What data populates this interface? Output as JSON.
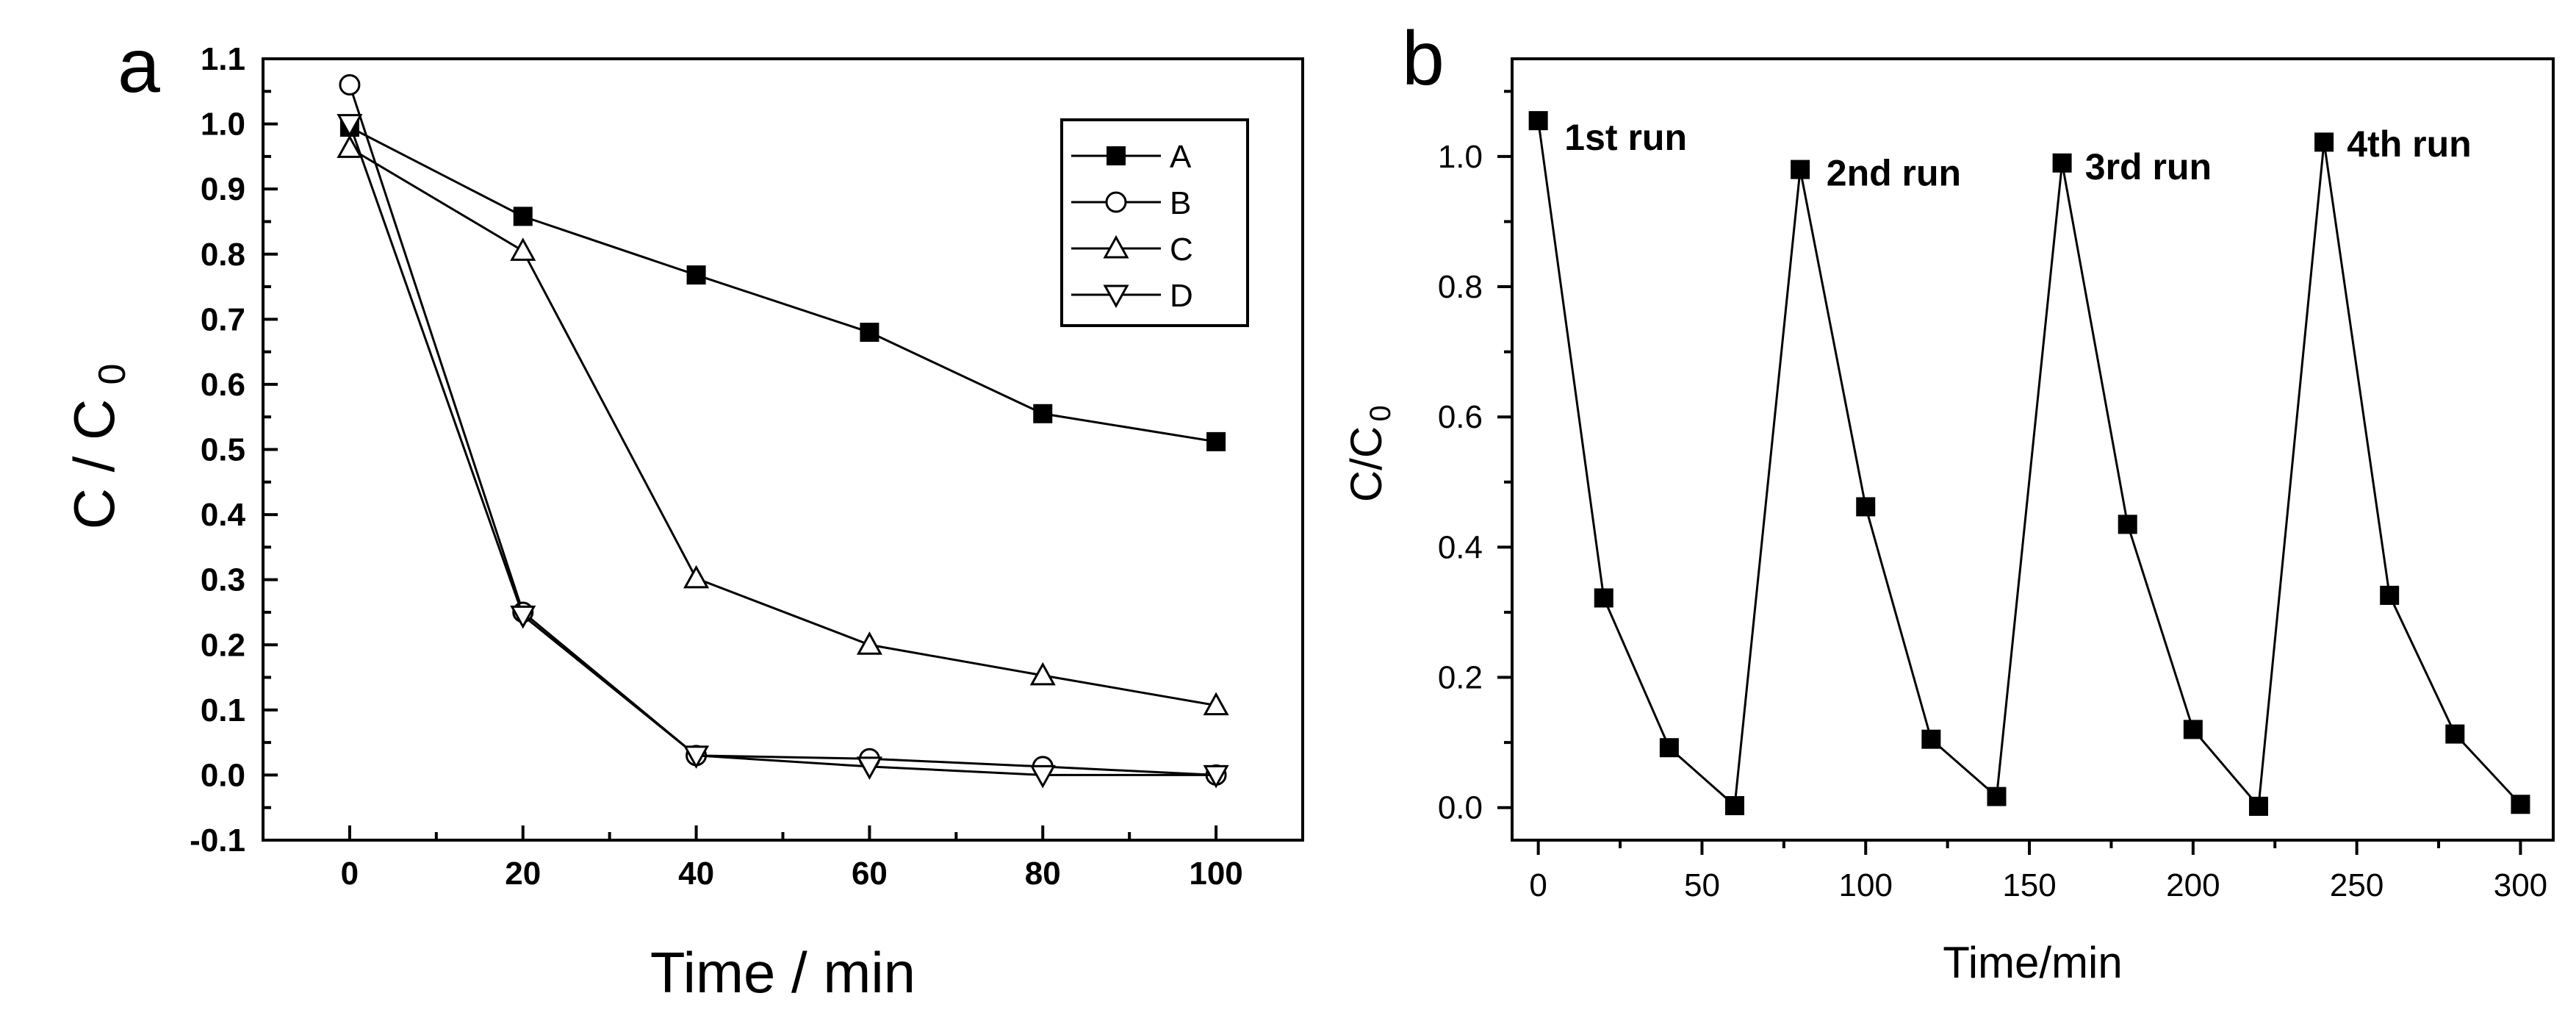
{
  "chart_data": [
    {
      "type": "line",
      "panel_label": "a",
      "xlabel": "Time / min",
      "ylabel_main": "C / C",
      "ylabel_sub": "0",
      "xlim": [
        -10,
        110
      ],
      "ylim": [
        -0.1,
        1.1
      ],
      "x_ticks": [
        0,
        20,
        40,
        60,
        80,
        100
      ],
      "x_tick_labels": [
        "0",
        "20",
        "40",
        "60",
        "80",
        "100"
      ],
      "y_ticks": [
        -0.1,
        0.0,
        0.1,
        0.2,
        0.3,
        0.4,
        0.5,
        0.6,
        0.7,
        0.8,
        0.9,
        1.0,
        1.1
      ],
      "y_tick_labels": [
        "-0.1",
        "0.0",
        "0.1",
        "0.2",
        "0.3",
        "0.4",
        "0.5",
        "0.6",
        "0.7",
        "0.8",
        "0.9",
        "1.0",
        "1.1"
      ],
      "x": [
        0,
        20,
        40,
        60,
        80,
        100
      ],
      "series": [
        {
          "name": "A",
          "marker": "square-filled",
          "values": [
            0.995,
            0.858,
            0.768,
            0.68,
            0.555,
            0.512
          ]
        },
        {
          "name": "B",
          "marker": "circle-open",
          "values": [
            1.06,
            0.25,
            0.03,
            0.025,
            0.013,
            0.0
          ]
        },
        {
          "name": "C",
          "marker": "triangle-up-open",
          "values": [
            0.963,
            0.805,
            0.302,
            0.2,
            0.153,
            0.107
          ]
        },
        {
          "name": "D",
          "marker": "triangle-down-open",
          "values": [
            1.0,
            0.245,
            0.03,
            0.013,
            0.0,
            0.0
          ]
        }
      ],
      "legend_position": "top-right"
    },
    {
      "type": "line",
      "panel_label": "b",
      "xlabel": "Time/min",
      "ylabel_main": "C/C",
      "ylabel_sub": "0",
      "xlim": [
        -8,
        310
      ],
      "ylim": [
        -0.05,
        1.15
      ],
      "x_ticks": [
        0,
        50,
        100,
        150,
        200,
        250,
        300
      ],
      "x_tick_labels": [
        "0",
        "50",
        "100",
        "150",
        "200",
        "250",
        "300"
      ],
      "y_ticks": [
        0.0,
        0.2,
        0.4,
        0.6,
        0.8,
        1.0
      ],
      "y_tick_labels": [
        "0.0",
        "0.2",
        "0.4",
        "0.6",
        "0.8",
        "1.0"
      ],
      "x": [
        0,
        20,
        40,
        60,
        80,
        100,
        120,
        140,
        160,
        180,
        200,
        220,
        240,
        260,
        280,
        300
      ],
      "series": [
        {
          "name": "C/C0",
          "marker": "square-filled",
          "values": [
            1.055,
            0.322,
            0.092,
            0.003,
            0.98,
            0.462,
            0.105,
            0.017,
            0.99,
            0.435,
            0.12,
            0.002,
            1.022,
            0.326,
            0.113,
            0.005
          ]
        }
      ],
      "annotations": [
        {
          "text": "1st run",
          "x": 8,
          "y": 1.01
        },
        {
          "text": "2nd run",
          "x": 88,
          "y": 0.955
        },
        {
          "text": "3rd run",
          "x": 167,
          "y": 0.965
        },
        {
          "text": "4th run",
          "x": 247,
          "y": 1.0
        }
      ]
    }
  ]
}
